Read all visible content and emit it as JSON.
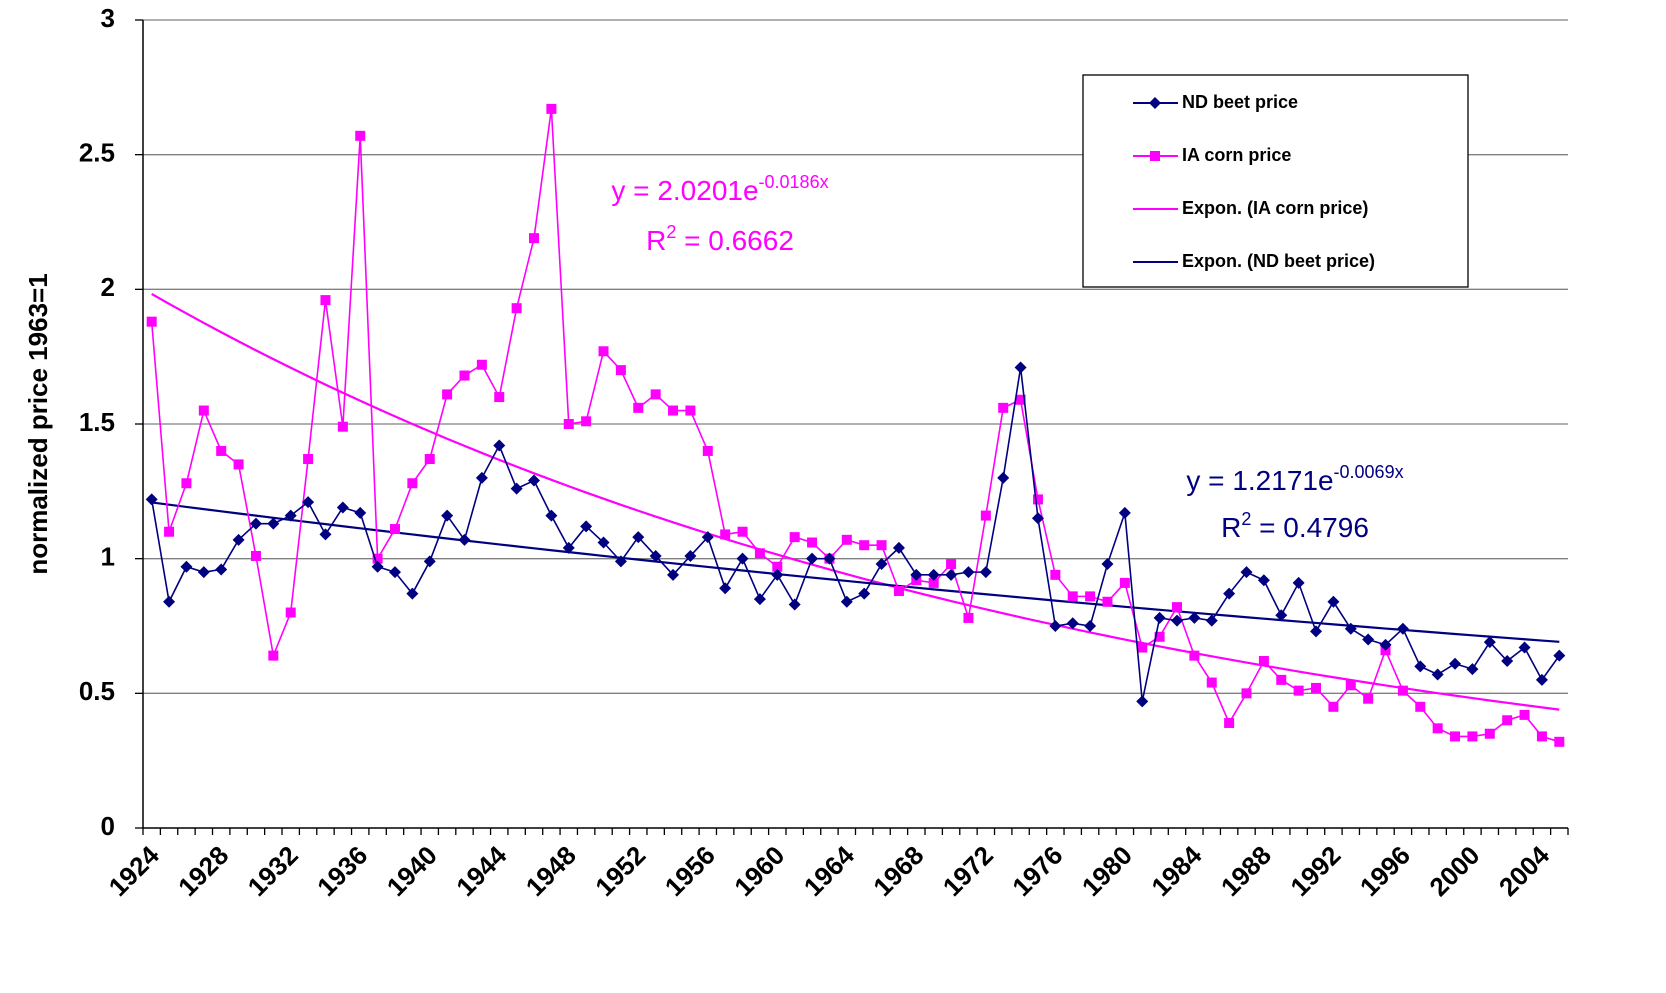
{
  "chart_data": {
    "type": "line",
    "y_label": "normalized price 1963=1",
    "categories": [
      "1924",
      null,
      null,
      null,
      "1928",
      null,
      null,
      null,
      "1932",
      null,
      null,
      null,
      "1936",
      null,
      null,
      null,
      "1940",
      null,
      null,
      null,
      "1944",
      null,
      null,
      null,
      "1948",
      null,
      null,
      null,
      "1952",
      null,
      null,
      null,
      "1956",
      null,
      null,
      null,
      "1960",
      null,
      null,
      null,
      "1964",
      null,
      null,
      null,
      "1968",
      null,
      null,
      null,
      "1972",
      null,
      null,
      null,
      "1976",
      null,
      null,
      null,
      "1980",
      null,
      null,
      null,
      "1984",
      null,
      null,
      null,
      "1988",
      null,
      null,
      null,
      "1992",
      null,
      null,
      null,
      "1996",
      null,
      null,
      null,
      "2000",
      null,
      null,
      null,
      "2004",
      null
    ],
    "series": [
      {
        "name": "ND beet price",
        "color": "#000080",
        "marker": "diamond",
        "values": [
          1.22,
          0.84,
          0.97,
          0.95,
          0.96,
          1.07,
          1.13,
          1.13,
          1.16,
          1.21,
          1.09,
          1.19,
          1.17,
          0.97,
          0.95,
          0.87,
          0.99,
          1.16,
          1.07,
          1.3,
          1.42,
          1.26,
          1.29,
          1.16,
          1.04,
          1.12,
          1.06,
          0.99,
          1.08,
          1.01,
          0.94,
          1.01,
          1.08,
          0.89,
          1.0,
          0.85,
          0.94,
          0.83,
          1.0,
          1.0,
          0.84,
          0.87,
          0.98,
          1.04,
          0.94,
          0.94,
          0.94,
          0.95,
          0.95,
          1.3,
          1.71,
          1.15,
          0.75,
          0.76,
          0.75,
          0.98,
          1.17,
          0.47,
          0.78,
          0.77,
          0.78,
          0.77,
          0.87,
          0.95,
          0.92,
          0.79,
          0.91,
          0.73,
          0.84,
          0.74,
          0.7,
          0.68,
          0.74,
          0.6,
          0.57,
          0.61,
          0.59,
          0.69,
          0.62,
          0.67,
          0.55,
          0.64
        ]
      },
      {
        "name": "IA corn price",
        "color": "#ff00ff",
        "marker": "square",
        "values": [
          1.88,
          1.1,
          1.28,
          1.55,
          1.4,
          1.35,
          1.01,
          0.64,
          0.8,
          1.37,
          1.96,
          1.49,
          2.57,
          1.0,
          1.11,
          1.28,
          1.37,
          1.61,
          1.68,
          1.72,
          1.6,
          1.93,
          2.19,
          2.67,
          1.5,
          1.51,
          1.77,
          1.7,
          1.56,
          1.61,
          1.55,
          1.55,
          1.4,
          1.09,
          1.1,
          1.02,
          0.97,
          1.08,
          1.06,
          1.0,
          1.07,
          1.05,
          1.05,
          0.88,
          0.92,
          0.91,
          0.98,
          0.78,
          1.16,
          1.56,
          1.59,
          1.22,
          0.94,
          0.86,
          0.86,
          0.84,
          0.91,
          0.67,
          0.71,
          0.82,
          0.64,
          0.54,
          0.39,
          0.5,
          0.62,
          0.55,
          0.51,
          0.52,
          0.45,
          0.53,
          0.48,
          0.66,
          0.51,
          0.45,
          0.37,
          0.34,
          0.34,
          0.35,
          0.4,
          0.42,
          0.34,
          0.32
        ]
      }
    ],
    "trendlines": [
      {
        "name": "Expon. (IA corn price)",
        "color": "#ff00ff",
        "a": 2.0201,
        "b": -0.0186,
        "equation": {
          "base": "y = 2.0201e",
          "exponent": "-0.0186x"
        },
        "r_squared": {
          "base": "R",
          "exponent": "2",
          "rest": " = 0.6662"
        }
      },
      {
        "name": "Expon. (ND beet price)",
        "color": "#000080",
        "a": 1.2171,
        "b": -0.0069,
        "equation": {
          "base": "y = 1.2171e",
          "exponent": "-0.0069x"
        },
        "r_squared": {
          "base": "R",
          "exponent": "2",
          "rest": " = 0.4796"
        }
      }
    ],
    "ylim": [
      0,
      3
    ],
    "yticks": [
      0,
      0.5,
      1,
      1.5,
      2,
      2.5,
      3
    ],
    "grid": true
  }
}
